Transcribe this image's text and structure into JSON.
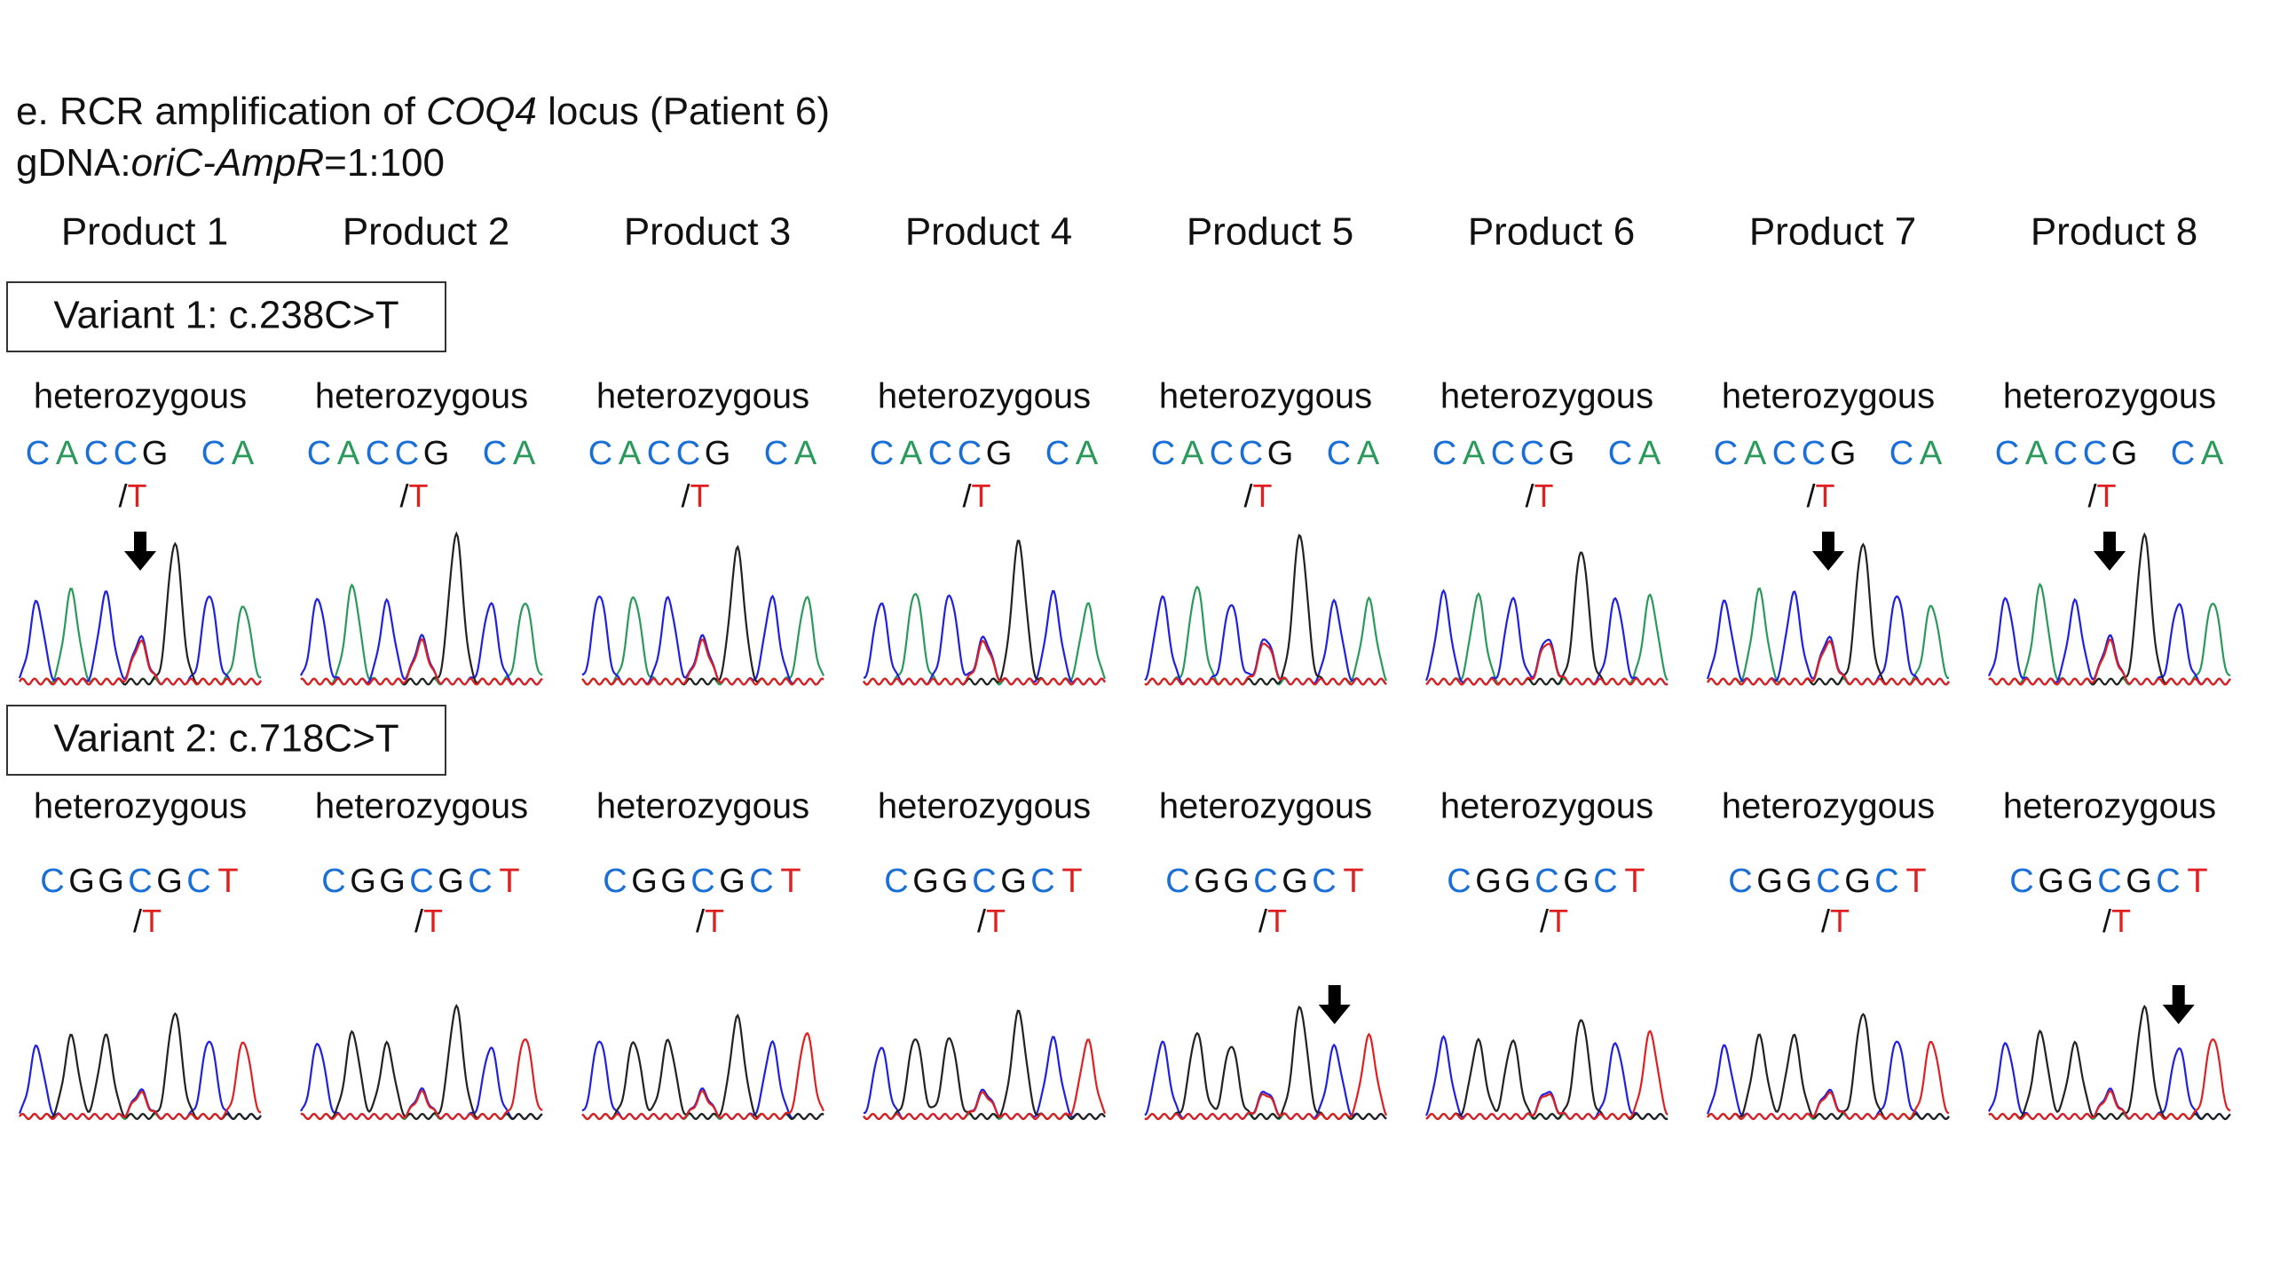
{
  "title": {
    "prefix": "e. RCR amplification of ",
    "gene": "COQ4",
    "suffix": " locus (Patient 6)"
  },
  "subtitle": {
    "prefix": "gDNA:",
    "construct": "oriC-AmpR",
    "suffix": "=1:100"
  },
  "products": [
    "Product 1",
    "Product 2",
    "Product 3",
    "Product 4",
    "Product 5",
    "Product 6",
    "Product 7",
    "Product 8"
  ],
  "variants": [
    {
      "label": "Variant 1: c.238C>T",
      "results": [
        "heterozygous",
        "heterozygous",
        "heterozygous",
        "heterozygous",
        "heterozygous",
        "heterozygous",
        "heterozygous",
        "heterozygous"
      ],
      "sequence": "CACCG CA",
      "mutation": "/T"
    },
    {
      "label": "Variant 2: c.718C>T",
      "results": [
        "heterozygous",
        "heterozygous",
        "heterozygous",
        "heterozygous",
        "heterozygous",
        "heterozygous",
        "heterozygous",
        "heterozygous"
      ],
      "sequence": "CGGCGCT",
      "mutation": "/T"
    }
  ]
}
